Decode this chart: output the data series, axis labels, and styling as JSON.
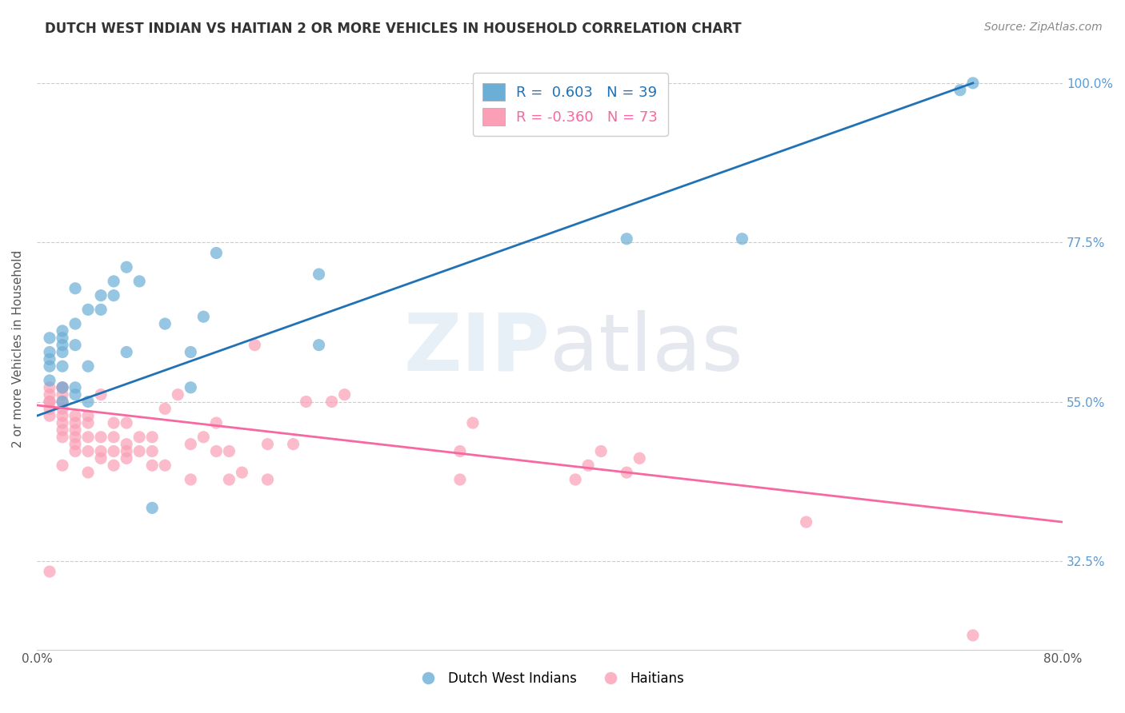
{
  "title": "DUTCH WEST INDIAN VS HAITIAN 2 OR MORE VEHICLES IN HOUSEHOLD CORRELATION CHART",
  "source": "Source: ZipAtlas.com",
  "xlabel": "",
  "ylabel": "2 or more Vehicles in Household",
  "xmin": 0.0,
  "xmax": 0.8,
  "ymin": 0.2,
  "ymax": 1.05,
  "yticks": [
    0.325,
    0.55,
    0.775,
    1.0
  ],
  "ytick_labels": [
    "32.5%",
    "55.0%",
    "77.5%",
    "100.0%"
  ],
  "xticks": [
    0.0,
    0.1,
    0.2,
    0.3,
    0.4,
    0.5,
    0.6,
    0.7,
    0.8
  ],
  "xtick_labels": [
    "0.0%",
    "",
    "",
    "",
    "",
    "",
    "",
    "",
    "80.0%"
  ],
  "blue_color": "#6baed6",
  "pink_color": "#fa9fb5",
  "blue_line_color": "#2171b5",
  "pink_line_color": "#f768a1",
  "legend_blue_R": "0.603",
  "legend_blue_N": "39",
  "legend_pink_R": "-0.360",
  "legend_pink_N": "73",
  "blue_points_x": [
    0.01,
    0.01,
    0.01,
    0.01,
    0.01,
    0.02,
    0.02,
    0.02,
    0.02,
    0.02,
    0.02,
    0.02,
    0.03,
    0.03,
    0.03,
    0.03,
    0.03,
    0.04,
    0.04,
    0.04,
    0.05,
    0.05,
    0.06,
    0.06,
    0.07,
    0.07,
    0.08,
    0.09,
    0.1,
    0.12,
    0.12,
    0.13,
    0.14,
    0.22,
    0.22,
    0.46,
    0.55,
    0.72,
    0.73
  ],
  "blue_points_y": [
    0.58,
    0.6,
    0.61,
    0.62,
    0.64,
    0.55,
    0.57,
    0.6,
    0.62,
    0.63,
    0.64,
    0.65,
    0.56,
    0.57,
    0.63,
    0.66,
    0.71,
    0.55,
    0.6,
    0.68,
    0.68,
    0.7,
    0.7,
    0.72,
    0.62,
    0.74,
    0.72,
    0.4,
    0.66,
    0.57,
    0.62,
    0.67,
    0.76,
    0.63,
    0.73,
    0.78,
    0.78,
    0.99,
    1.0
  ],
  "pink_points_x": [
    0.01,
    0.01,
    0.01,
    0.01,
    0.01,
    0.01,
    0.01,
    0.02,
    0.02,
    0.02,
    0.02,
    0.02,
    0.02,
    0.02,
    0.02,
    0.02,
    0.02,
    0.03,
    0.03,
    0.03,
    0.03,
    0.03,
    0.03,
    0.04,
    0.04,
    0.04,
    0.04,
    0.04,
    0.05,
    0.05,
    0.05,
    0.05,
    0.06,
    0.06,
    0.06,
    0.06,
    0.07,
    0.07,
    0.07,
    0.07,
    0.08,
    0.08,
    0.09,
    0.09,
    0.09,
    0.1,
    0.1,
    0.11,
    0.12,
    0.12,
    0.13,
    0.14,
    0.14,
    0.15,
    0.15,
    0.16,
    0.17,
    0.18,
    0.18,
    0.2,
    0.21,
    0.23,
    0.24,
    0.33,
    0.33,
    0.34,
    0.42,
    0.43,
    0.44,
    0.46,
    0.47,
    0.6,
    0.73
  ],
  "pink_points_y": [
    0.31,
    0.53,
    0.54,
    0.55,
    0.55,
    0.56,
    0.57,
    0.46,
    0.5,
    0.51,
    0.52,
    0.53,
    0.54,
    0.55,
    0.56,
    0.57,
    0.57,
    0.48,
    0.49,
    0.5,
    0.51,
    0.52,
    0.53,
    0.45,
    0.48,
    0.5,
    0.52,
    0.53,
    0.47,
    0.48,
    0.5,
    0.56,
    0.46,
    0.48,
    0.5,
    0.52,
    0.47,
    0.48,
    0.49,
    0.52,
    0.48,
    0.5,
    0.46,
    0.48,
    0.5,
    0.46,
    0.54,
    0.56,
    0.44,
    0.49,
    0.5,
    0.48,
    0.52,
    0.44,
    0.48,
    0.45,
    0.63,
    0.44,
    0.49,
    0.49,
    0.55,
    0.55,
    0.56,
    0.44,
    0.48,
    0.52,
    0.44,
    0.46,
    0.48,
    0.45,
    0.47,
    0.38,
    0.22
  ],
  "blue_line_x": [
    0.0,
    0.73
  ],
  "blue_line_y": [
    0.53,
    1.0
  ],
  "pink_line_x": [
    0.0,
    0.8
  ],
  "pink_line_y": [
    0.545,
    0.38
  ]
}
